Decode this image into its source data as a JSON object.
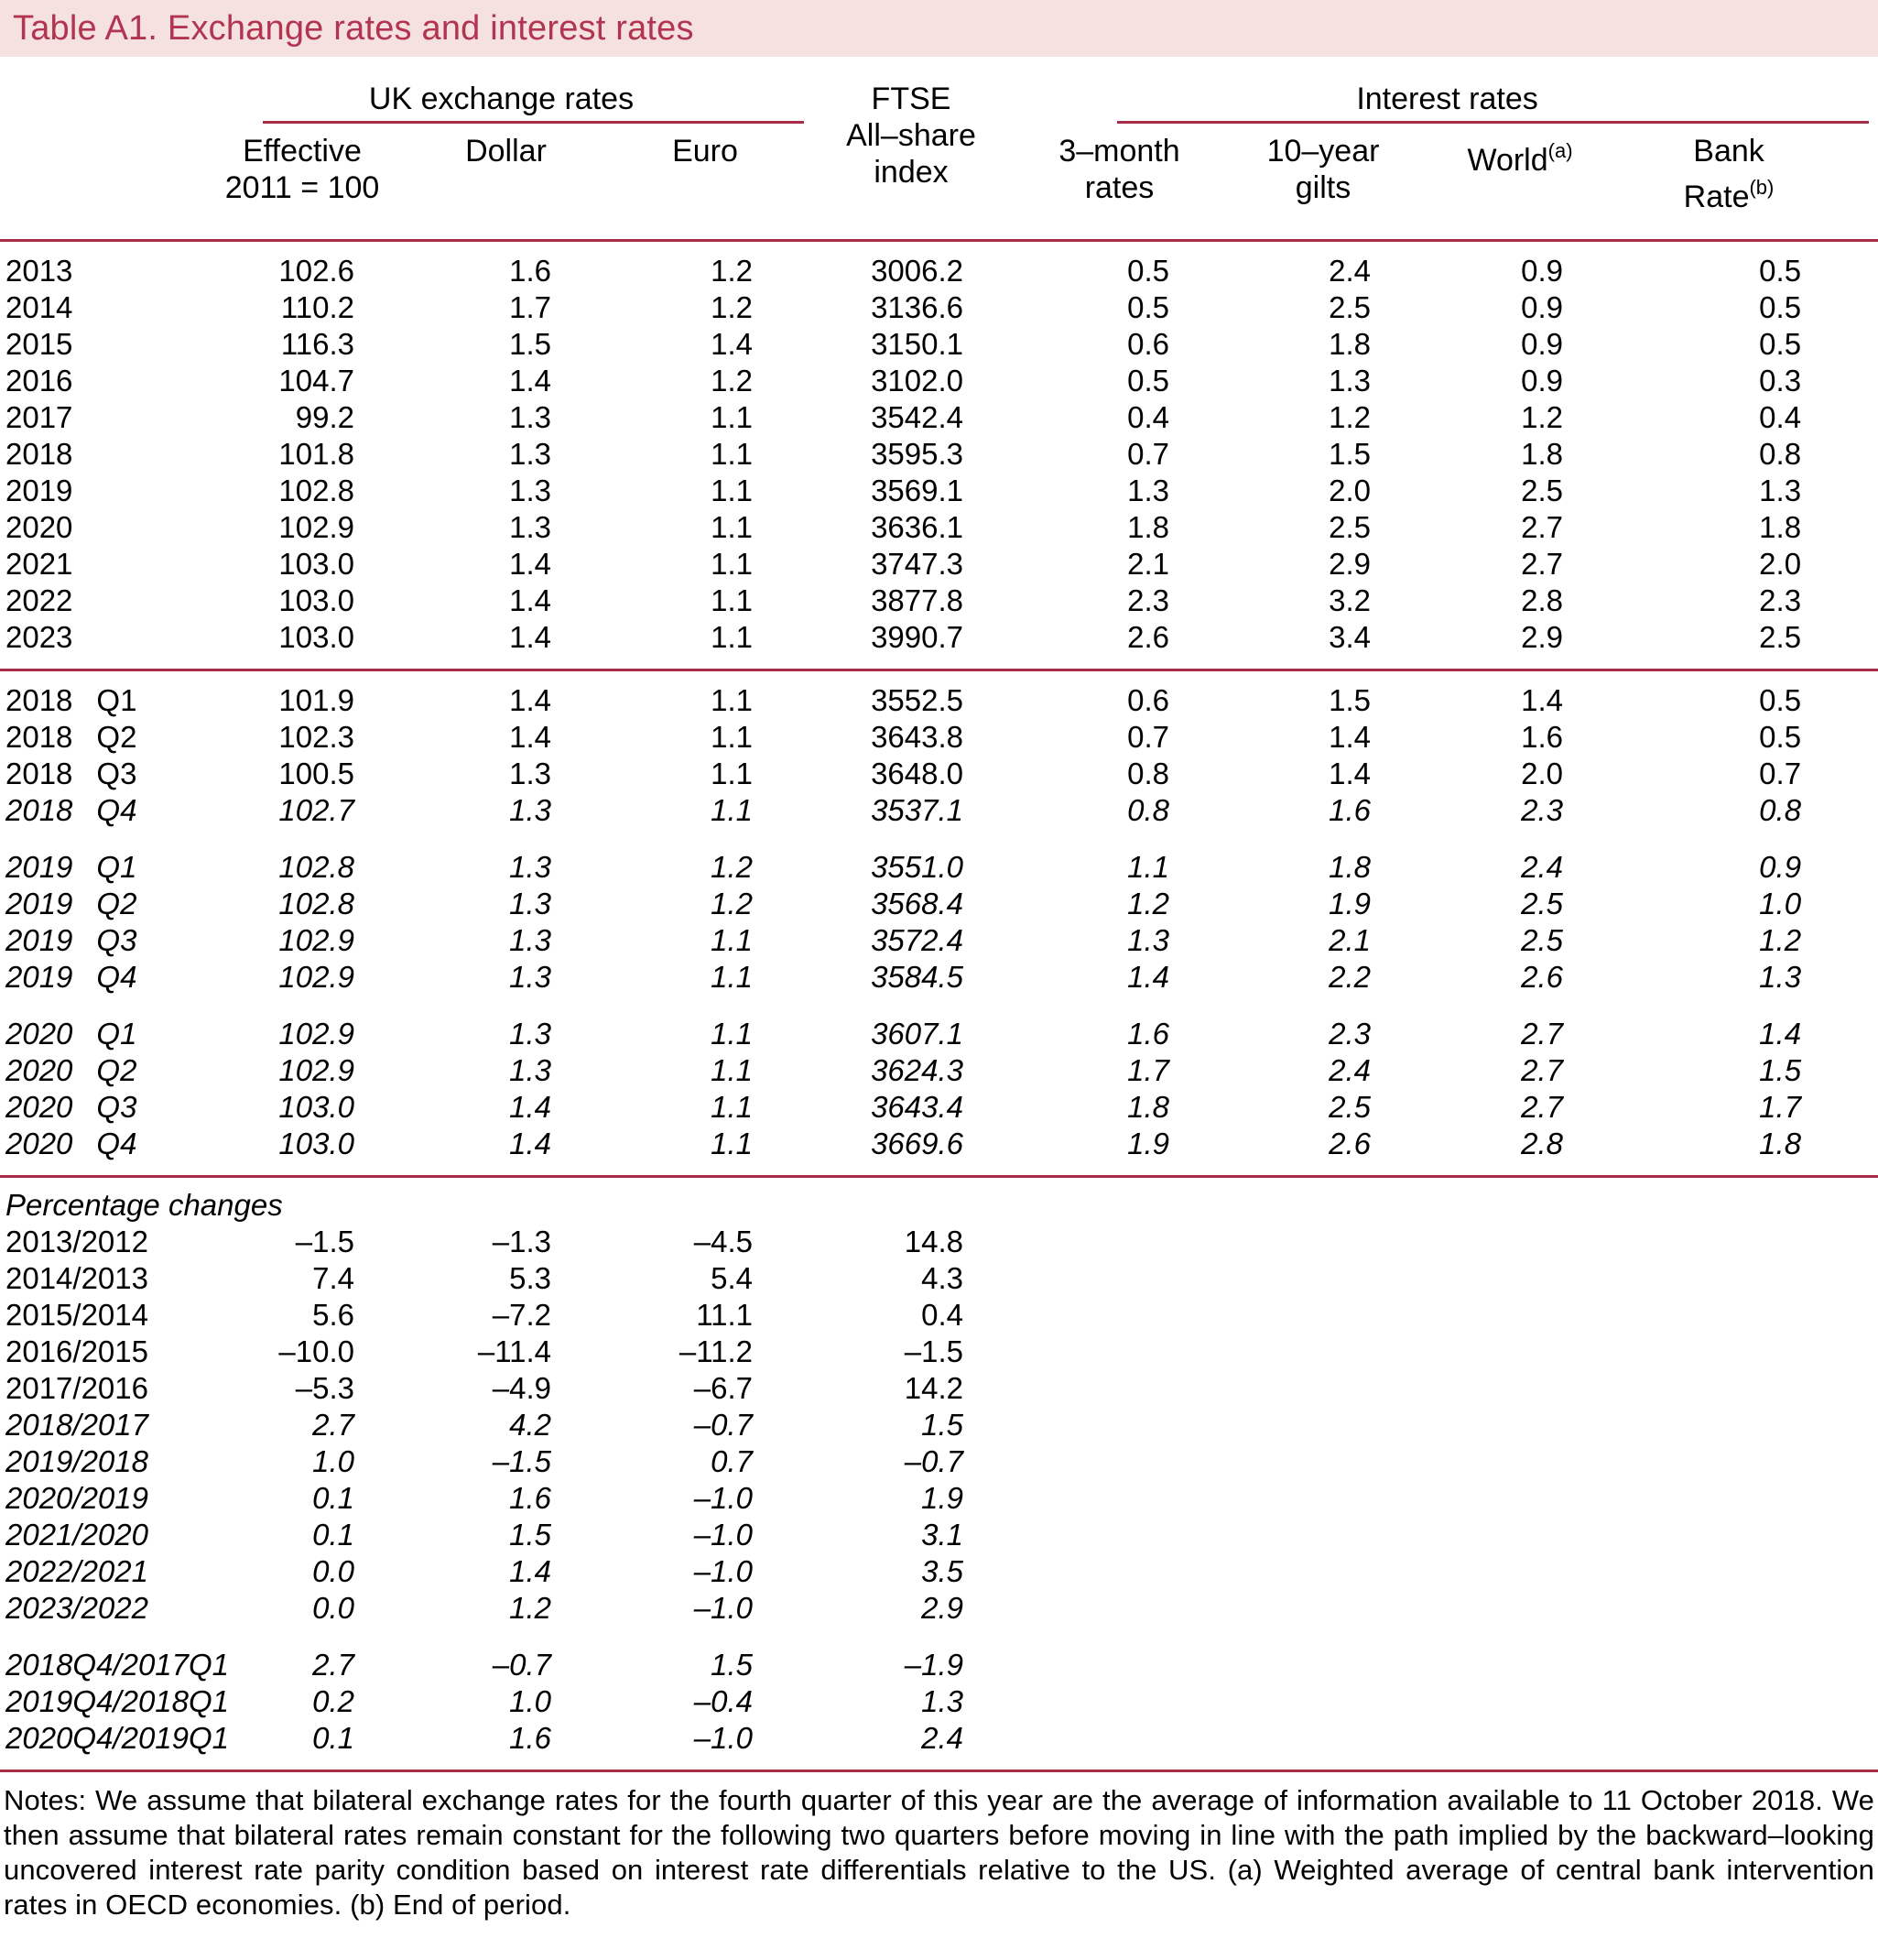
{
  "title": "Table A1. Exchange rates and interest rates",
  "colors": {
    "accent_rule": "#a72c47",
    "title_text": "#b13450",
    "title_background": "#f5e1e0"
  },
  "header": {
    "group_uk": "UK exchange rates",
    "group_interest": "Interest rates",
    "ftse_line1": "FTSE",
    "ftse_line2": "All–share",
    "ftse_line3": "index",
    "effective_line1": "Effective",
    "effective_line2": "2011 = 100",
    "dollar": "Dollar",
    "euro": "Euro",
    "m3_line1": "3–month",
    "m3_line2": "rates",
    "gilts_line1": "10–year",
    "gilts_line2": "gilts",
    "world_text": "World",
    "world_sup": "(a)",
    "bank_line1": "Bank",
    "bank_line2": "Rate",
    "bank_sup": "(b)"
  },
  "years": [
    {
      "label": "2013",
      "italic": false,
      "values": [
        "102.6",
        "1.6",
        "1.2",
        "3006.2",
        "0.5",
        "2.4",
        "0.9",
        "0.5"
      ]
    },
    {
      "label": "2014",
      "italic": false,
      "values": [
        "110.2",
        "1.7",
        "1.2",
        "3136.6",
        "0.5",
        "2.5",
        "0.9",
        "0.5"
      ]
    },
    {
      "label": "2015",
      "italic": false,
      "values": [
        "116.3",
        "1.5",
        "1.4",
        "3150.1",
        "0.6",
        "1.8",
        "0.9",
        "0.5"
      ]
    },
    {
      "label": "2016",
      "italic": false,
      "values": [
        "104.7",
        "1.4",
        "1.2",
        "3102.0",
        "0.5",
        "1.3",
        "0.9",
        "0.3"
      ]
    },
    {
      "label": "2017",
      "italic": false,
      "values": [
        "99.2",
        "1.3",
        "1.1",
        "3542.4",
        "0.4",
        "1.2",
        "1.2",
        "0.4"
      ]
    },
    {
      "label": "2018",
      "italic": false,
      "values": [
        "101.8",
        "1.3",
        "1.1",
        "3595.3",
        "0.7",
        "1.5",
        "1.8",
        "0.8"
      ]
    },
    {
      "label": "2019",
      "italic": false,
      "values": [
        "102.8",
        "1.3",
        "1.1",
        "3569.1",
        "1.3",
        "2.0",
        "2.5",
        "1.3"
      ]
    },
    {
      "label": "2020",
      "italic": false,
      "values": [
        "102.9",
        "1.3",
        "1.1",
        "3636.1",
        "1.8",
        "2.5",
        "2.7",
        "1.8"
      ]
    },
    {
      "label": "2021",
      "italic": false,
      "values": [
        "103.0",
        "1.4",
        "1.1",
        "3747.3",
        "2.1",
        "2.9",
        "2.7",
        "2.0"
      ]
    },
    {
      "label": "2022",
      "italic": false,
      "values": [
        "103.0",
        "1.4",
        "1.1",
        "3877.8",
        "2.3",
        "3.2",
        "2.8",
        "2.3"
      ]
    },
    {
      "label": "2023",
      "italic": false,
      "values": [
        "103.0",
        "1.4",
        "1.1",
        "3990.7",
        "2.6",
        "3.4",
        "2.9",
        "2.5"
      ]
    }
  ],
  "quarters": [
    {
      "year": "2018",
      "q": "Q1",
      "italic": false,
      "gap_before": false,
      "values": [
        "101.9",
        "1.4",
        "1.1",
        "3552.5",
        "0.6",
        "1.5",
        "1.4",
        "0.5"
      ]
    },
    {
      "year": "2018",
      "q": "Q2",
      "italic": false,
      "gap_before": false,
      "values": [
        "102.3",
        "1.4",
        "1.1",
        "3643.8",
        "0.7",
        "1.4",
        "1.6",
        "0.5"
      ]
    },
    {
      "year": "2018",
      "q": "Q3",
      "italic": false,
      "gap_before": false,
      "values": [
        "100.5",
        "1.3",
        "1.1",
        "3648.0",
        "0.8",
        "1.4",
        "2.0",
        "0.7"
      ]
    },
    {
      "year": "2018",
      "q": "Q4",
      "italic": true,
      "gap_before": false,
      "values": [
        "102.7",
        "1.3",
        "1.1",
        "3537.1",
        "0.8",
        "1.6",
        "2.3",
        "0.8"
      ]
    },
    {
      "year": "2019",
      "q": "Q1",
      "italic": true,
      "gap_before": true,
      "values": [
        "102.8",
        "1.3",
        "1.2",
        "3551.0",
        "1.1",
        "1.8",
        "2.4",
        "0.9"
      ]
    },
    {
      "year": "2019",
      "q": "Q2",
      "italic": true,
      "gap_before": false,
      "values": [
        "102.8",
        "1.3",
        "1.2",
        "3568.4",
        "1.2",
        "1.9",
        "2.5",
        "1.0"
      ]
    },
    {
      "year": "2019",
      "q": "Q3",
      "italic": true,
      "gap_before": false,
      "values": [
        "102.9",
        "1.3",
        "1.1",
        "3572.4",
        "1.3",
        "2.1",
        "2.5",
        "1.2"
      ]
    },
    {
      "year": "2019",
      "q": "Q4",
      "italic": true,
      "gap_before": false,
      "values": [
        "102.9",
        "1.3",
        "1.1",
        "3584.5",
        "1.4",
        "2.2",
        "2.6",
        "1.3"
      ]
    },
    {
      "year": "2020",
      "q": "Q1",
      "italic": true,
      "gap_before": true,
      "values": [
        "102.9",
        "1.3",
        "1.1",
        "3607.1",
        "1.6",
        "2.3",
        "2.7",
        "1.4"
      ]
    },
    {
      "year": "2020",
      "q": "Q2",
      "italic": true,
      "gap_before": false,
      "values": [
        "102.9",
        "1.3",
        "1.1",
        "3624.3",
        "1.7",
        "2.4",
        "2.7",
        "1.5"
      ]
    },
    {
      "year": "2020",
      "q": "Q3",
      "italic": true,
      "gap_before": false,
      "values": [
        "103.0",
        "1.4",
        "1.1",
        "3643.4",
        "1.8",
        "2.5",
        "2.7",
        "1.7"
      ]
    },
    {
      "year": "2020",
      "q": "Q4",
      "italic": true,
      "gap_before": false,
      "values": [
        "103.0",
        "1.4",
        "1.1",
        "3669.6",
        "1.9",
        "2.6",
        "2.8",
        "1.8"
      ]
    }
  ],
  "pct_section": {
    "heading": "Percentage changes",
    "rows": [
      {
        "label": "2013/2012",
        "italic": false,
        "gap_before": false,
        "values": [
          "–1.5",
          "–1.3",
          "–4.5",
          "14.8"
        ]
      },
      {
        "label": "2014/2013",
        "italic": false,
        "gap_before": false,
        "values": [
          "7.4",
          "5.3",
          "5.4",
          "4.3"
        ]
      },
      {
        "label": "2015/2014",
        "italic": false,
        "gap_before": false,
        "values": [
          "5.6",
          "–7.2",
          "11.1",
          "0.4"
        ]
      },
      {
        "label": "2016/2015",
        "italic": false,
        "gap_before": false,
        "values": [
          "–10.0",
          "–11.4",
          "–11.2",
          "–1.5"
        ]
      },
      {
        "label": "2017/2016",
        "italic": false,
        "gap_before": false,
        "values": [
          "–5.3",
          "–4.9",
          "–6.7",
          "14.2"
        ]
      },
      {
        "label": "2018/2017",
        "italic": true,
        "gap_before": false,
        "values": [
          "2.7",
          "4.2",
          "–0.7",
          "1.5"
        ]
      },
      {
        "label": "2019/2018",
        "italic": true,
        "gap_before": false,
        "values": [
          "1.0",
          "–1.5",
          "0.7",
          "–0.7"
        ]
      },
      {
        "label": "2020/2019",
        "italic": true,
        "gap_before": false,
        "values": [
          "0.1",
          "1.6",
          "–1.0",
          "1.9"
        ]
      },
      {
        "label": "2021/2020",
        "italic": true,
        "gap_before": false,
        "values": [
          "0.1",
          "1.5",
          "–1.0",
          "3.1"
        ]
      },
      {
        "label": "2022/2021",
        "italic": true,
        "gap_before": false,
        "values": [
          "0.0",
          "1.4",
          "–1.0",
          "3.5"
        ]
      },
      {
        "label": "2023/2022",
        "italic": true,
        "gap_before": false,
        "values": [
          "0.0",
          "1.2",
          "–1.0",
          "2.9"
        ]
      },
      {
        "label": "2018Q4/2017Q1",
        "italic": true,
        "gap_before": true,
        "values": [
          "2.7",
          "–0.7",
          "1.5",
          "–1.9"
        ]
      },
      {
        "label": "2019Q4/2018Q1",
        "italic": true,
        "gap_before": false,
        "values": [
          "0.2",
          "1.0",
          "–0.4",
          "1.3"
        ]
      },
      {
        "label": "2020Q4/2019Q1",
        "italic": true,
        "gap_before": false,
        "values": [
          "0.1",
          "1.6",
          "–1.0",
          "2.4"
        ]
      }
    ]
  },
  "notes": "Notes: We assume that bilateral exchange rates for the fourth quarter of this year are the average of information available to 11 October 2018. We then assume that bilateral rates remain constant for the following two quarters before moving in line with the path implied by the backward–looking uncovered interest rate parity condition based on interest rate differentials relative to the US. (a) Weighted average of central bank intervention rates in OECD economies. (b) End of period."
}
